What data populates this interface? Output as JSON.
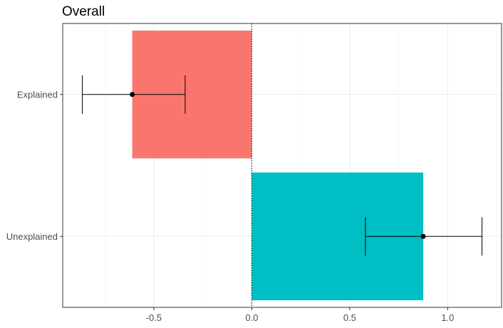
{
  "chart_data": {
    "type": "bar",
    "orientation": "horizontal",
    "title": "Overall",
    "xlabel": "",
    "ylabel": "",
    "categories": [
      "Explained",
      "Unexplained"
    ],
    "values": [
      -0.61,
      0.875
    ],
    "error_low": [
      -0.865,
      0.58
    ],
    "error_high": [
      -0.34,
      1.175
    ],
    "point_estimates": [
      -0.61,
      0.875
    ],
    "colors": [
      "#F8766D",
      "#00BFC4"
    ],
    "xlim": [
      -0.965,
      1.275
    ],
    "x_ticks": [
      -0.5,
      0.0,
      0.5,
      1.0
    ],
    "x_tick_labels": [
      "-0.5",
      "0.0",
      "0.5",
      "1.0"
    ],
    "reference_line": 0,
    "grid": true,
    "legend": "none"
  }
}
